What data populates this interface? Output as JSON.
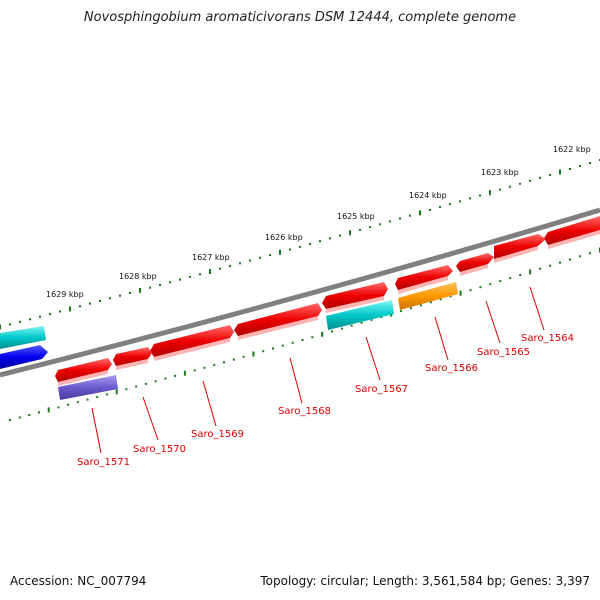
{
  "title": "Novosphingobium aromaticivorans DSM 12444, complete genome",
  "footer": {
    "accession": "Accession: NC_007794",
    "summary": "Topology: circular; Length: 3,561,584 bp; Genes: 3,397"
  },
  "colors": {
    "backbone": "#808080",
    "tick": "#1a7a1a",
    "label": "#dd0000",
    "red_gene": "#ee0000",
    "cyan_gene": "#00cccc",
    "orange_gene": "#ff9900",
    "blue_gene": "#0000ee",
    "purple_gene": "#6a5acd"
  },
  "kbp_markers": [
    "1622 kbp",
    "1623 kbp",
    "1624 kbp",
    "1625 kbp",
    "1626 kbp",
    "1627 kbp",
    "1628 kbp",
    "1629 kbp"
  ],
  "gene_labels": [
    "Saro_1564",
    "Saro_1565",
    "Saro_1566",
    "Saro_1567",
    "Saro_1568",
    "Saro_1569",
    "Saro_1570",
    "Saro_1571"
  ]
}
